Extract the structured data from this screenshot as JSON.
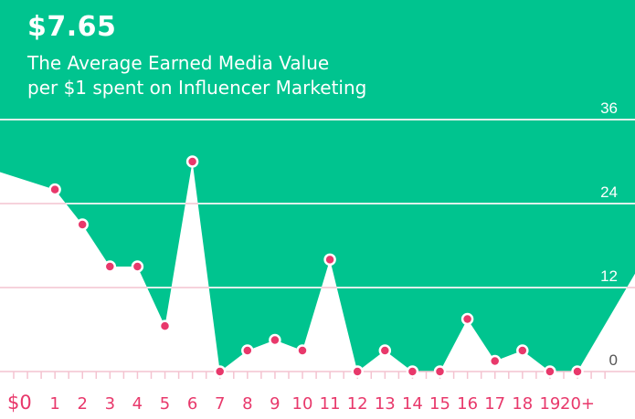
{
  "header": {
    "headline": "$7.65",
    "subtitle_line1": "The Average Earned Media Value",
    "subtitle_line2": "per $1 spent on Influencer Marketing"
  },
  "colors": {
    "fill": "#00c48f",
    "marker": "#e8386b",
    "axis_text": "#e8386b",
    "gridline": "#ffffff",
    "gridline_under": "#f4c3d0"
  },
  "chart_data": {
    "type": "area",
    "title": "",
    "xlabel": "",
    "ylabel": "",
    "x_tick_labels": [
      "$0",
      "1",
      "2",
      "3",
      "4",
      "5",
      "6",
      "7",
      "8",
      "9",
      "10",
      "11",
      "12",
      "13",
      "14",
      "15",
      "16",
      "17",
      "18",
      "19",
      "20+"
    ],
    "y_tick_labels": [
      "0",
      "12",
      "24",
      "36"
    ],
    "y_ticks": [
      0,
      12,
      24,
      36
    ],
    "ylim": [
      0,
      40
    ],
    "grid": true,
    "series": [
      {
        "x": [
          1,
          2,
          3,
          4,
          5,
          6,
          7,
          8,
          9,
          10,
          11,
          12,
          13,
          14,
          15,
          16,
          17,
          18,
          19,
          20
        ],
        "values": [
          26,
          21,
          15,
          15,
          6.5,
          30,
          0,
          3,
          4.5,
          3,
          16,
          0,
          3,
          0,
          0,
          7.5,
          1.5,
          3,
          0,
          0
        ]
      }
    ]
  }
}
